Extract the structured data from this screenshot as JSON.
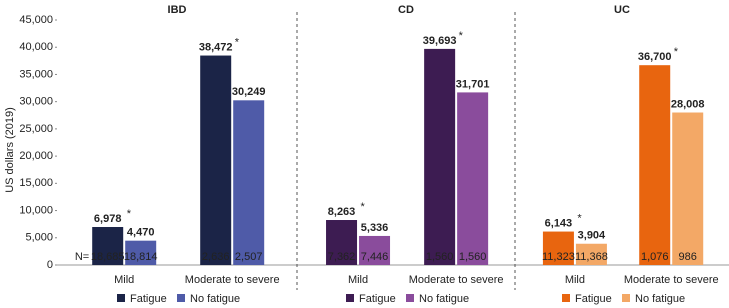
{
  "chart_data": {
    "type": "bar",
    "ylabel": "US dollars (2019)",
    "ylim": [
      0,
      45000
    ],
    "yticks": [
      0,
      {
        "value": 5000,
        "label": "5,000"
      },
      {
        "value": 10000,
        "label": "10,000"
      },
      {
        "value": 15000,
        "label": "15,000"
      },
      {
        "value": 20000,
        "label": "20,000"
      },
      {
        "value": 25000,
        "label": "25,000"
      },
      {
        "value": 30000,
        "label": "30,000"
      },
      {
        "value": 35000,
        "label": "35,000"
      },
      {
        "value": 40000,
        "label": "40,000"
      },
      {
        "value": 45000,
        "label": "45,000"
      }
    ],
    "n_prefix": "N=",
    "panels": [
      {
        "title": "IBD",
        "categories": [
          "Mild",
          "Moderate to severe"
        ],
        "n_color": "#ffffff",
        "series": [
          {
            "name": "Fatigue",
            "color": "#1b2447",
            "values": [
              6978,
              38472
            ],
            "value_labels": [
              "6,978",
              "38,472"
            ],
            "markers": [
              "*",
              "*"
            ],
            "n": [
              "18,685",
              "2,636"
            ]
          },
          {
            "name": "No fatigue",
            "color": "#4f5ba8",
            "values": [
              4470,
              30249
            ],
            "value_labels": [
              "4,470",
              "30,249"
            ],
            "n": [
              "18,814",
              "2,507"
            ]
          }
        ]
      },
      {
        "title": "CD",
        "categories": [
          "Mild",
          "Moderate to severe"
        ],
        "n_color": "#ffffff",
        "series": [
          {
            "name": "Fatigue",
            "color": "#3d1c52",
            "values": [
              8263,
              39693
            ],
            "value_labels": [
              "8,263",
              "39,693"
            ],
            "markers": [
              "*",
              "*"
            ],
            "n": [
              "7,362",
              "1,560"
            ]
          },
          {
            "name": "No fatigue",
            "color": "#8a4c9c",
            "values": [
              5336,
              31701
            ],
            "value_labels": [
              "5,336",
              "31,701"
            ],
            "n": [
              "7,446",
              "1,560"
            ]
          }
        ]
      },
      {
        "title": "UC",
        "categories": [
          "Mild",
          "Moderate to severe"
        ],
        "n_color": "#222222",
        "series": [
          {
            "name": "Fatigue",
            "color": "#e8650f",
            "values": [
              6143,
              36700
            ],
            "value_labels": [
              "6,143",
              "36,700"
            ],
            "markers": [
              "*",
              "*"
            ],
            "n": [
              "11,323",
              "1,076"
            ]
          },
          {
            "name": "No fatigue",
            "color": "#f3a866",
            "values": [
              3904,
              28008
            ],
            "value_labels": [
              "3,904",
              "28,008"
            ],
            "n": [
              "11,368",
              "986"
            ]
          }
        ]
      }
    ]
  }
}
